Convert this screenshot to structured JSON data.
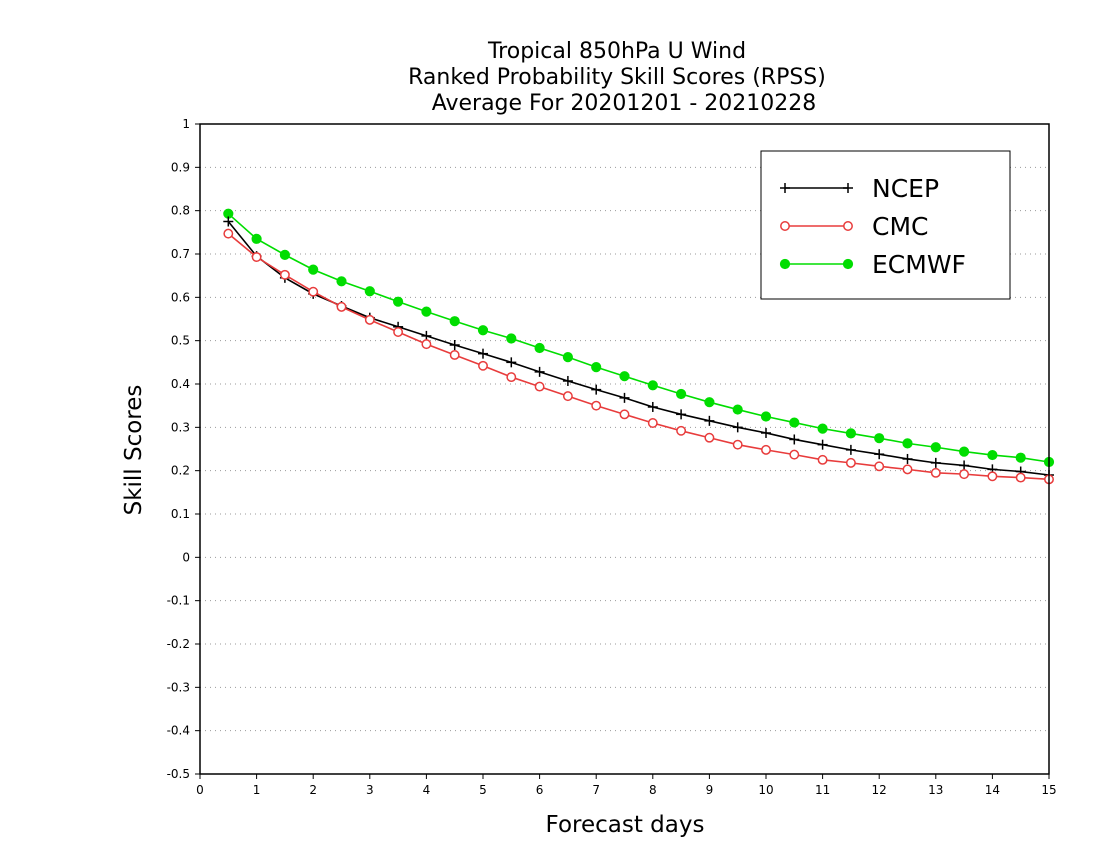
{
  "chart_data": {
    "type": "line",
    "title": [
      "Tropical 850hPa U Wind",
      "Ranked Probability Skill Scores (RPSS)",
      "Average For 20201201 - 20210228"
    ],
    "xlabel": "Forecast days",
    "ylabel": "Skill Scores",
    "xlim": [
      0,
      15
    ],
    "ylim": [
      -0.5,
      1
    ],
    "xticks": [
      "0",
      "1",
      "2",
      "3",
      "4",
      "5",
      "6",
      "7",
      "8",
      "9",
      "10",
      "11",
      "12",
      "13",
      "14",
      "15"
    ],
    "yticks": [
      "-0.5",
      "-0.4",
      "-0.3",
      "-0.2",
      "-0.1",
      "0",
      "0.1",
      "0.2",
      "0.3",
      "0.4",
      "0.5",
      "0.6",
      "0.7",
      "0.8",
      "0.9",
      "1"
    ],
    "grid": "horizontal dotted",
    "legend_position": "top-right",
    "x": [
      0.5,
      1,
      1.5,
      2,
      2.5,
      3,
      3.5,
      4,
      4.5,
      5,
      5.5,
      6,
      6.5,
      7,
      7.5,
      8,
      8.5,
      9,
      9.5,
      10,
      10.5,
      11,
      11.5,
      12,
      12.5,
      13,
      13.5,
      14,
      14.5,
      15
    ],
    "series": [
      {
        "name": "NCEP",
        "color": "#000000",
        "marker": "plus",
        "values": [
          0.775,
          0.695,
          0.645,
          0.608,
          0.58,
          0.553,
          0.532,
          0.511,
          0.49,
          0.47,
          0.45,
          0.428,
          0.407,
          0.387,
          0.368,
          0.347,
          0.33,
          0.315,
          0.3,
          0.287,
          0.272,
          0.26,
          0.248,
          0.238,
          0.227,
          0.218,
          0.212,
          0.203,
          0.198,
          0.19
        ]
      },
      {
        "name": "CMC",
        "color": "#e83c3c",
        "marker": "open-circle",
        "values": [
          0.747,
          0.693,
          0.652,
          0.613,
          0.578,
          0.548,
          0.52,
          0.492,
          0.467,
          0.442,
          0.416,
          0.394,
          0.372,
          0.35,
          0.33,
          0.31,
          0.292,
          0.276,
          0.26,
          0.248,
          0.237,
          0.225,
          0.218,
          0.21,
          0.203,
          0.195,
          0.192,
          0.187,
          0.184,
          0.18
        ]
      },
      {
        "name": "ECMWF",
        "color": "#00dd00",
        "marker": "filled-circle",
        "values": [
          0.793,
          0.735,
          0.698,
          0.664,
          0.637,
          0.614,
          0.59,
          0.567,
          0.545,
          0.524,
          0.505,
          0.483,
          0.462,
          0.439,
          0.418,
          0.397,
          0.377,
          0.358,
          0.341,
          0.325,
          0.311,
          0.297,
          0.286,
          0.275,
          0.263,
          0.254,
          0.244,
          0.236,
          0.23,
          0.22
        ]
      }
    ]
  }
}
